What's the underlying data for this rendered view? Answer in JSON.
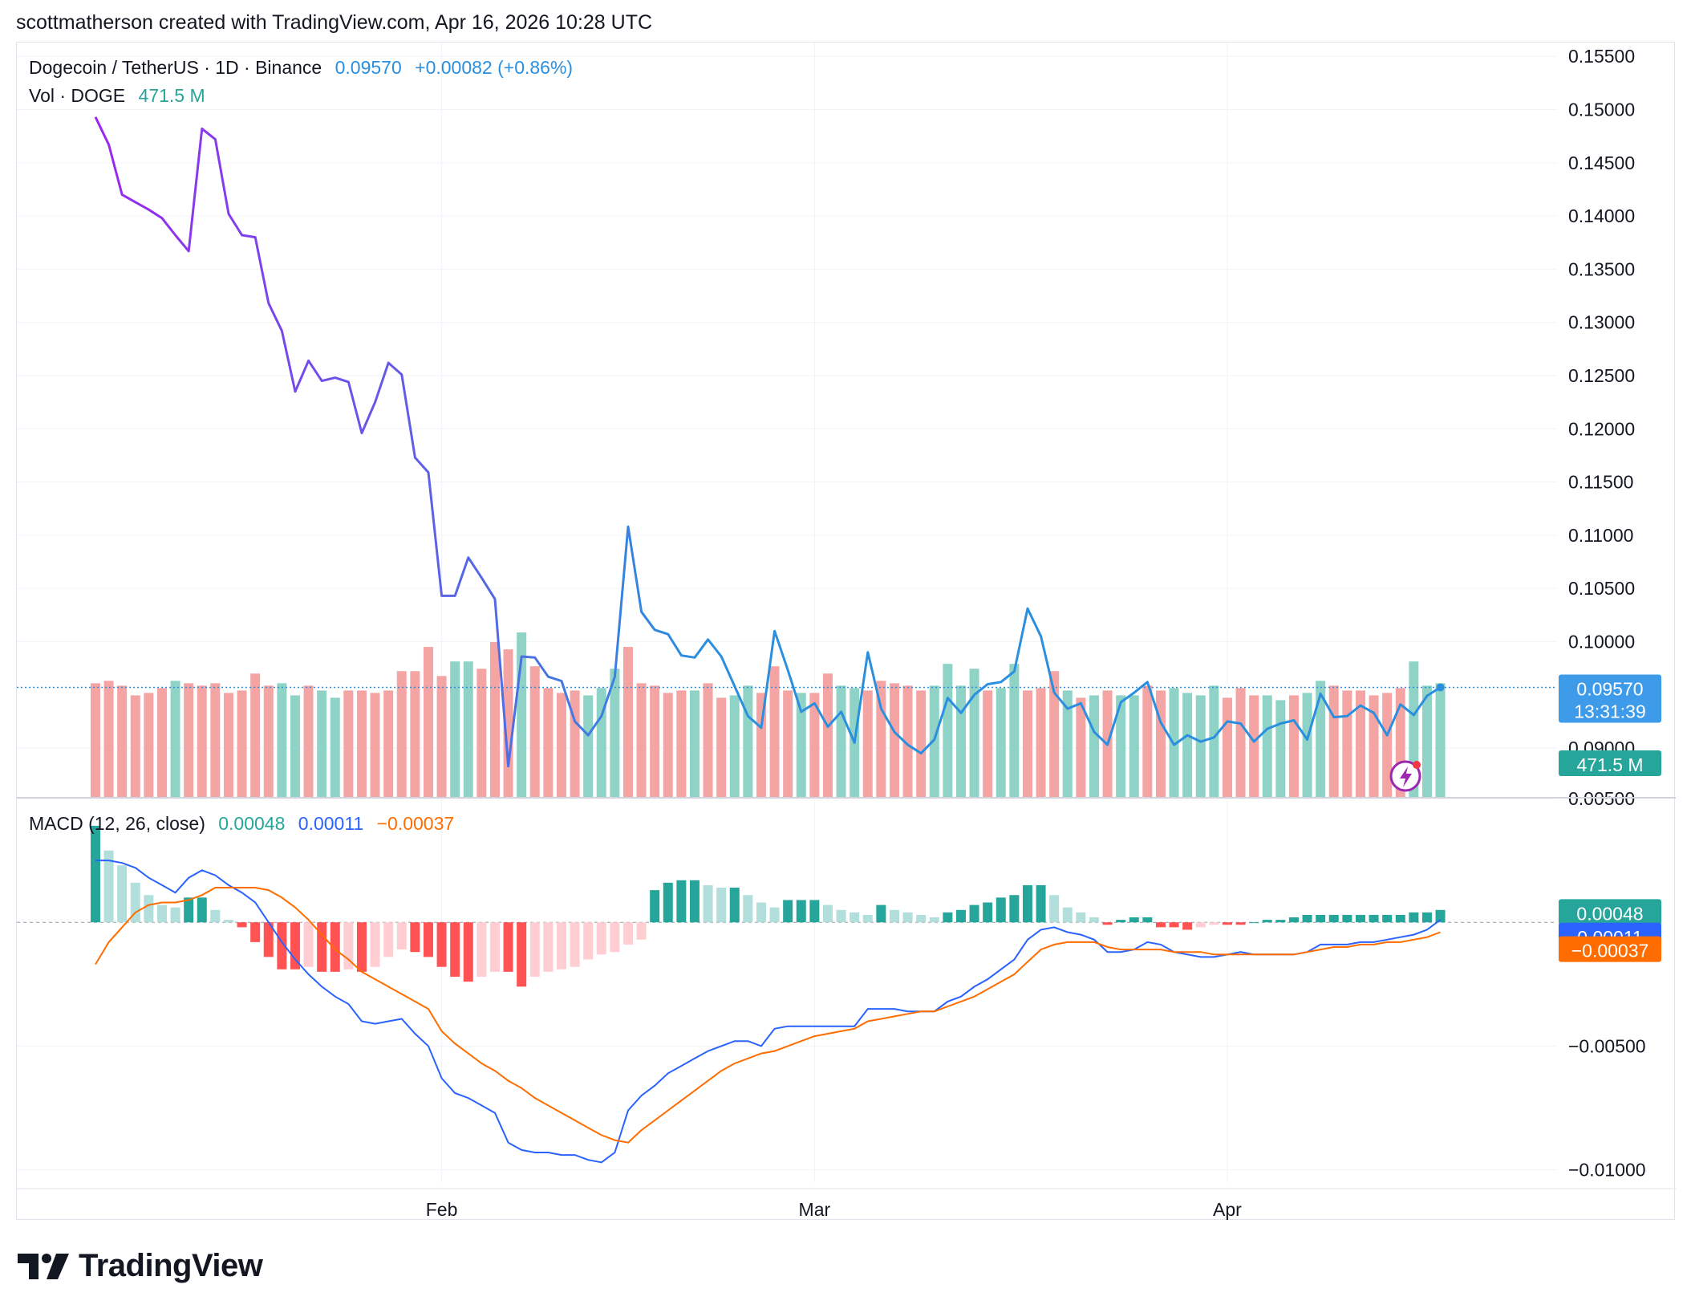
{
  "header": {
    "text": "scottmatherson created with TradingView.com, Apr 16, 2026 10:28 UTC"
  },
  "legend": {
    "symbol": "Dogecoin / TetherUS · 1D · Binance",
    "price": "0.09570",
    "change": "+0.00082 (+0.86%)",
    "vol_label": "Vol · DOGE",
    "vol_value": "471.5 M",
    "macd_label": "MACD (12, 26, close)",
    "macd_hist": "0.00048",
    "macd_line": "0.00011",
    "macd_signal": "−0.00037"
  },
  "badges": {
    "price": "0.09570",
    "countdown": "13:31:39",
    "volume": "471.5 M",
    "macd_hist": "0.00048",
    "macd_line": "0.00011",
    "macd_signal": "−0.00037"
  },
  "colors": {
    "price_line_start": "#9c27f0",
    "price_line_end": "#2a8fde",
    "up_vol": "#8fd3c6",
    "down_vol": "#f5a4a4",
    "hist_up_strong": "#26a69a",
    "hist_up_weak": "#b2dfdb",
    "hist_down_strong": "#ff5252",
    "hist_down_weak": "#ffcdd2",
    "macd_line": "#2962ff",
    "signal_line": "#ff6d00",
    "price_badge": "#3d9be9",
    "volume_badge": "#26a69a"
  },
  "footer": {
    "brand": "TradingView"
  },
  "chart_data": [
    {
      "type": "line",
      "name": "price",
      "y_ticks": [
        "0.15500",
        "0.15000",
        "0.14500",
        "0.14000",
        "0.13500",
        "0.13000",
        "0.12500",
        "0.12000",
        "0.11500",
        "0.11000",
        "0.10500",
        "0.10000",
        "0.09000"
      ],
      "x_ticks": [
        "Feb",
        "Mar",
        "Apr"
      ],
      "ylim": [
        0.0854,
        0.1563
      ],
      "x_tick_days": [
        31,
        59,
        90
      ],
      "start_day": 5,
      "last_price": 0.0957,
      "values": [
        0.1493,
        0.1467,
        0.142,
        0.1413,
        0.1406,
        0.1398,
        0.1382,
        0.1367,
        0.1482,
        0.1472,
        0.1402,
        0.1382,
        0.138,
        0.1318,
        0.1292,
        0.1235,
        0.1264,
        0.1245,
        0.1248,
        0.1244,
        0.1196,
        0.1225,
        0.1262,
        0.1251,
        0.1173,
        0.1159,
        0.1043,
        0.1043,
        0.1079,
        0.106,
        0.104,
        0.0883,
        0.0986,
        0.0985,
        0.0967,
        0.0963,
        0.0925,
        0.0912,
        0.093,
        0.0967,
        0.1108,
        0.1028,
        0.1011,
        0.1007,
        0.0987,
        0.0985,
        0.1002,
        0.0986,
        0.0958,
        0.093,
        0.0919,
        0.101,
        0.0973,
        0.0934,
        0.0942,
        0.092,
        0.0934,
        0.0905,
        0.099,
        0.0937,
        0.0915,
        0.0903,
        0.0895,
        0.0908,
        0.0947,
        0.0933,
        0.095,
        0.096,
        0.0962,
        0.0972,
        0.1031,
        0.1005,
        0.0952,
        0.0937,
        0.0942,
        0.0915,
        0.0903,
        0.0943,
        0.0952,
        0.0962,
        0.0924,
        0.0903,
        0.0912,
        0.0906,
        0.091,
        0.0925,
        0.0923,
        0.0906,
        0.0918,
        0.0923,
        0.0926,
        0.0908,
        0.0951,
        0.0929,
        0.093,
        0.094,
        0.0933,
        0.0912,
        0.0941,
        0.0931,
        0.0949,
        0.0957
      ]
    },
    {
      "type": "bar",
      "name": "Vol · DOGE",
      "up_flags": [
        0,
        0,
        0,
        0,
        0,
        0,
        1,
        0,
        0,
        0,
        0,
        0,
        0,
        0,
        1,
        1,
        0,
        1,
        1,
        0,
        0,
        0,
        0,
        0,
        0,
        0,
        0,
        1,
        1,
        0,
        0,
        0,
        1,
        0,
        0,
        0,
        0,
        1,
        1,
        1,
        0,
        0,
        0,
        0,
        0,
        1,
        0,
        0,
        1,
        1,
        0,
        0,
        0,
        1,
        0,
        0,
        1,
        1,
        0,
        0,
        0,
        0,
        0,
        1,
        1,
        1,
        1,
        0,
        1,
        1,
        0,
        0,
        0,
        1,
        0,
        1,
        0,
        1,
        1,
        0,
        0,
        1,
        1,
        1,
        1,
        0,
        0,
        0,
        1,
        1,
        0,
        1,
        1,
        0,
        0,
        0,
        0,
        0,
        0,
        1,
        1,
        1,
        1
      ],
      "values": [
        47,
        48,
        46,
        42,
        43,
        45,
        48,
        47,
        46,
        47,
        43,
        44,
        51,
        46,
        47,
        42,
        46,
        44,
        41,
        44,
        44,
        43,
        44,
        52,
        52,
        62,
        50,
        56,
        56,
        53,
        64,
        61,
        68,
        54,
        45,
        43,
        44,
        42,
        45,
        53,
        62,
        47,
        46,
        43,
        44,
        44,
        47,
        41,
        42,
        46,
        43,
        54,
        44,
        43,
        43,
        51,
        46,
        45,
        44,
        48,
        47,
        46,
        44,
        46,
        55,
        46,
        53,
        44,
        45,
        55,
        44,
        45,
        52,
        44,
        41,
        42,
        44,
        42,
        42,
        46,
        44,
        45,
        43,
        42,
        46,
        41,
        45,
        42,
        42,
        40,
        42,
        43,
        48,
        46,
        44,
        44,
        42,
        43,
        45,
        56,
        46,
        47
      ]
    },
    {
      "type": "bar",
      "name": "MACD histogram",
      "ylim": [
        -0.0105,
        0.005
      ],
      "y_ticks": [
        "0.00500",
        "−0.00500",
        "−0.01000"
      ],
      "values": [
        0.0039,
        0.0029,
        0.0023,
        0.0016,
        0.0011,
        0.0007,
        0.0006,
        0.001,
        0.001,
        0.0005,
        0.0001,
        -0.0002,
        -0.0008,
        -0.0014,
        -0.0019,
        -0.0019,
        -0.0018,
        -0.002,
        -0.002,
        -0.0019,
        -0.002,
        -0.0018,
        -0.0014,
        -0.0011,
        -0.0012,
        -0.0014,
        -0.0018,
        -0.0022,
        -0.0024,
        -0.0022,
        -0.002,
        -0.002,
        -0.0026,
        -0.0022,
        -0.002,
        -0.0019,
        -0.0018,
        -0.0015,
        -0.0013,
        -0.0012,
        -0.0009,
        -0.0007,
        0.0013,
        0.0016,
        0.0017,
        0.0017,
        0.0015,
        0.0014,
        0.0014,
        0.0011,
        0.0008,
        0.0006,
        0.0009,
        0.0009,
        0.0009,
        0.0007,
        0.0005,
        0.0004,
        0.0003,
        0.0007,
        0.0005,
        0.0004,
        0.0003,
        0.0002,
        0.0004,
        0.0005,
        0.0007,
        0.0008,
        0.001,
        0.0011,
        0.0015,
        0.0015,
        0.0011,
        0.0006,
        0.0004,
        0.0002,
        -0.0001,
        0.0001,
        0.0002,
        0.0002,
        -0.0002,
        -0.0002,
        -0.0003,
        -0.0002,
        -0.0001,
        -0.0001,
        -0.0001,
        0.0,
        0.0001,
        0.0001,
        0.0002,
        0.0003,
        0.0003,
        0.0003,
        0.0003,
        0.0003,
        0.0003,
        0.0003,
        0.0003,
        0.0004,
        0.0004,
        0.0005
      ]
    },
    {
      "type": "line",
      "name": "MACD",
      "values": [
        0.0025,
        0.0025,
        0.0024,
        0.0022,
        0.0018,
        0.0015,
        0.0012,
        0.0018,
        0.0021,
        0.0019,
        0.0015,
        0.0012,
        0.0008,
        0.0,
        -0.0008,
        -0.0015,
        -0.0021,
        -0.0026,
        -0.003,
        -0.0033,
        -0.004,
        -0.0041,
        -0.004,
        -0.0039,
        -0.0045,
        -0.005,
        -0.0063,
        -0.0069,
        -0.0071,
        -0.0074,
        -0.0077,
        -0.0089,
        -0.0092,
        -0.0093,
        -0.0093,
        -0.0094,
        -0.0094,
        -0.0096,
        -0.0097,
        -0.0093,
        -0.0076,
        -0.007,
        -0.0066,
        -0.0061,
        -0.0058,
        -0.0055,
        -0.0052,
        -0.005,
        -0.0048,
        -0.0048,
        -0.005,
        -0.0043,
        -0.0042,
        -0.0042,
        -0.0042,
        -0.0042,
        -0.0042,
        -0.0042,
        -0.0035,
        -0.0035,
        -0.0035,
        -0.0036,
        -0.0036,
        -0.0036,
        -0.0032,
        -0.003,
        -0.0026,
        -0.0023,
        -0.0019,
        -0.0015,
        -0.0007,
        -0.0003,
        -0.0002,
        -0.0004,
        -0.0005,
        -0.0007,
        -0.0012,
        -0.0012,
        -0.0011,
        -0.0008,
        -0.0009,
        -0.0012,
        -0.0013,
        -0.0014,
        -0.0014,
        -0.0013,
        -0.0012,
        -0.0013,
        -0.0013,
        -0.0013,
        -0.0013,
        -0.0012,
        -0.0009,
        -0.0009,
        -0.0009,
        -0.0008,
        -0.0008,
        -0.0007,
        -0.0006,
        -0.0005,
        -0.0003,
        0.0001
      ]
    },
    {
      "type": "line",
      "name": "Signal",
      "values": [
        -0.0017,
        -0.0008,
        -0.0002,
        0.0004,
        0.0007,
        0.0008,
        0.0008,
        0.0009,
        0.0011,
        0.0014,
        0.0014,
        0.0014,
        0.0014,
        0.0013,
        0.001,
        0.0006,
        0.0001,
        -0.0005,
        -0.0011,
        -0.0015,
        -0.002,
        -0.0023,
        -0.0026,
        -0.0029,
        -0.0032,
        -0.0035,
        -0.0044,
        -0.0049,
        -0.0053,
        -0.0057,
        -0.006,
        -0.0064,
        -0.0067,
        -0.0071,
        -0.0074,
        -0.0077,
        -0.008,
        -0.0083,
        -0.0086,
        -0.0088,
        -0.0089,
        -0.0084,
        -0.008,
        -0.0076,
        -0.0072,
        -0.0068,
        -0.0064,
        -0.006,
        -0.0057,
        -0.0055,
        -0.0053,
        -0.0052,
        -0.005,
        -0.0048,
        -0.0046,
        -0.0045,
        -0.0044,
        -0.0043,
        -0.004,
        -0.0039,
        -0.0038,
        -0.0037,
        -0.0036,
        -0.0036,
        -0.0034,
        -0.0032,
        -0.003,
        -0.0027,
        -0.0024,
        -0.0021,
        -0.0016,
        -0.0011,
        -0.0009,
        -0.0008,
        -0.0008,
        -0.0008,
        -0.001,
        -0.0011,
        -0.0011,
        -0.0011,
        -0.0011,
        -0.0012,
        -0.0012,
        -0.0012,
        -0.0013,
        -0.0013,
        -0.0013,
        -0.0013,
        -0.0013,
        -0.0013,
        -0.0013,
        -0.0012,
        -0.0011,
        -0.001,
        -0.001,
        -0.0009,
        -0.0009,
        -0.0008,
        -0.0008,
        -0.0007,
        -0.0006,
        -0.0004
      ]
    }
  ]
}
